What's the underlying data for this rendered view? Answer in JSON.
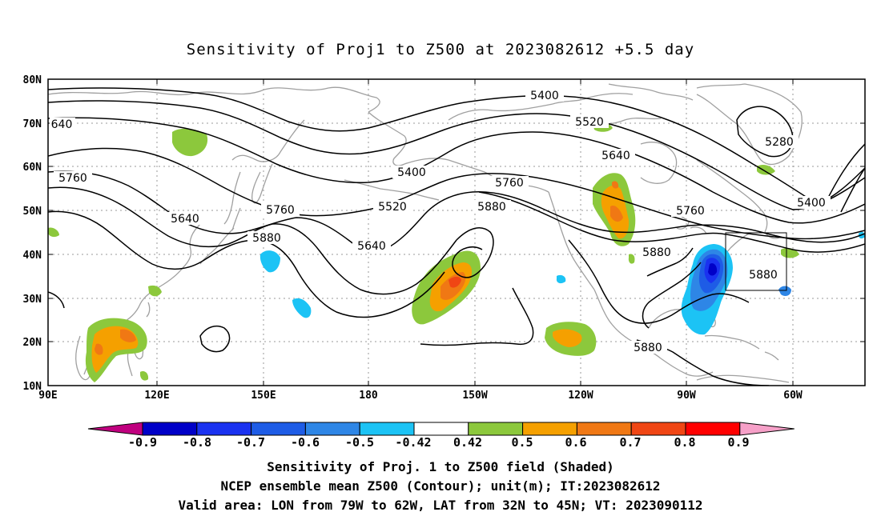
{
  "title": "Sensitivity of Proj1 to Z500 at 2023082612 +5.5 day",
  "map": {
    "lon_range": [
      "90E",
      "50W"
    ],
    "lat_range": [
      "10N",
      "80N"
    ],
    "lat_ticks": [
      "80N",
      "70N",
      "60N",
      "50N",
      "40N",
      "30N",
      "20N",
      "10N"
    ],
    "lon_ticks": [
      "90E",
      "120E",
      "150E",
      "180",
      "150W",
      "120W",
      "90W",
      "60W"
    ],
    "coastline_color": "#a0a0a0",
    "grid": "dotted",
    "contour_color": "#000000"
  },
  "contour_labels": [
    {
      "text": "5400",
      "name": "contour-label-5400-north"
    },
    {
      "text": "5520",
      "name": "contour-label-5520-north"
    },
    {
      "text": "5280",
      "name": "contour-label-5280"
    },
    {
      "text": "5400",
      "name": "contour-label-5400-west"
    },
    {
      "text": "5640",
      "name": "contour-label-5640-north"
    },
    {
      "text": "5760",
      "name": "contour-label-5760-central"
    },
    {
      "text": "5520",
      "name": "contour-label-5520-central"
    },
    {
      "text": "5880",
      "name": "contour-label-5880-central"
    },
    {
      "text": "5640",
      "name": "contour-label-5640-central"
    },
    {
      "text": "5760",
      "name": "contour-label-5760-west"
    },
    {
      "text": "5640",
      "name": "contour-label-5640-west"
    },
    {
      "text": "5760",
      "name": "contour-label-5760-far-west"
    },
    {
      "text": "5880",
      "name": "contour-label-5880-west"
    },
    {
      "text": "640",
      "name": "contour-label-640-edge"
    },
    {
      "text": "5400",
      "name": "contour-label-5400-east"
    },
    {
      "text": "5760",
      "name": "contour-label-5760-east"
    },
    {
      "text": "5880",
      "name": "contour-label-5880-east"
    },
    {
      "text": "5880",
      "name": "contour-label-5880-gulf"
    },
    {
      "text": "5880",
      "name": "contour-label-5880-atlantic"
    }
  ],
  "colorbar": {
    "labels": [
      "-0.9",
      "-0.8",
      "-0.7",
      "-0.6",
      "-0.5",
      "-0.42",
      "0.42",
      "0.5",
      "0.6",
      "0.7",
      "0.8",
      "0.9"
    ],
    "colors": [
      "#c0007f",
      "#0000c8",
      "#1a32f0",
      "#1e5ce6",
      "#2e86e6",
      "#1cc3f5",
      "#ffffff",
      "#8cc83c",
      "#f5a000",
      "#f07814",
      "#f04614",
      "#ff0000",
      "#f6a0c8"
    ]
  },
  "captions": {
    "line1": "Sensitivity of Proj. 1 to Z500 field (Shaded)",
    "line2": "NCEP ensemble mean Z500 (Contour); unit(m); IT:2023082612",
    "line3": "Valid area: LON from 79W to 62W, LAT from 32N to 45N; VT: 2023090112"
  }
}
